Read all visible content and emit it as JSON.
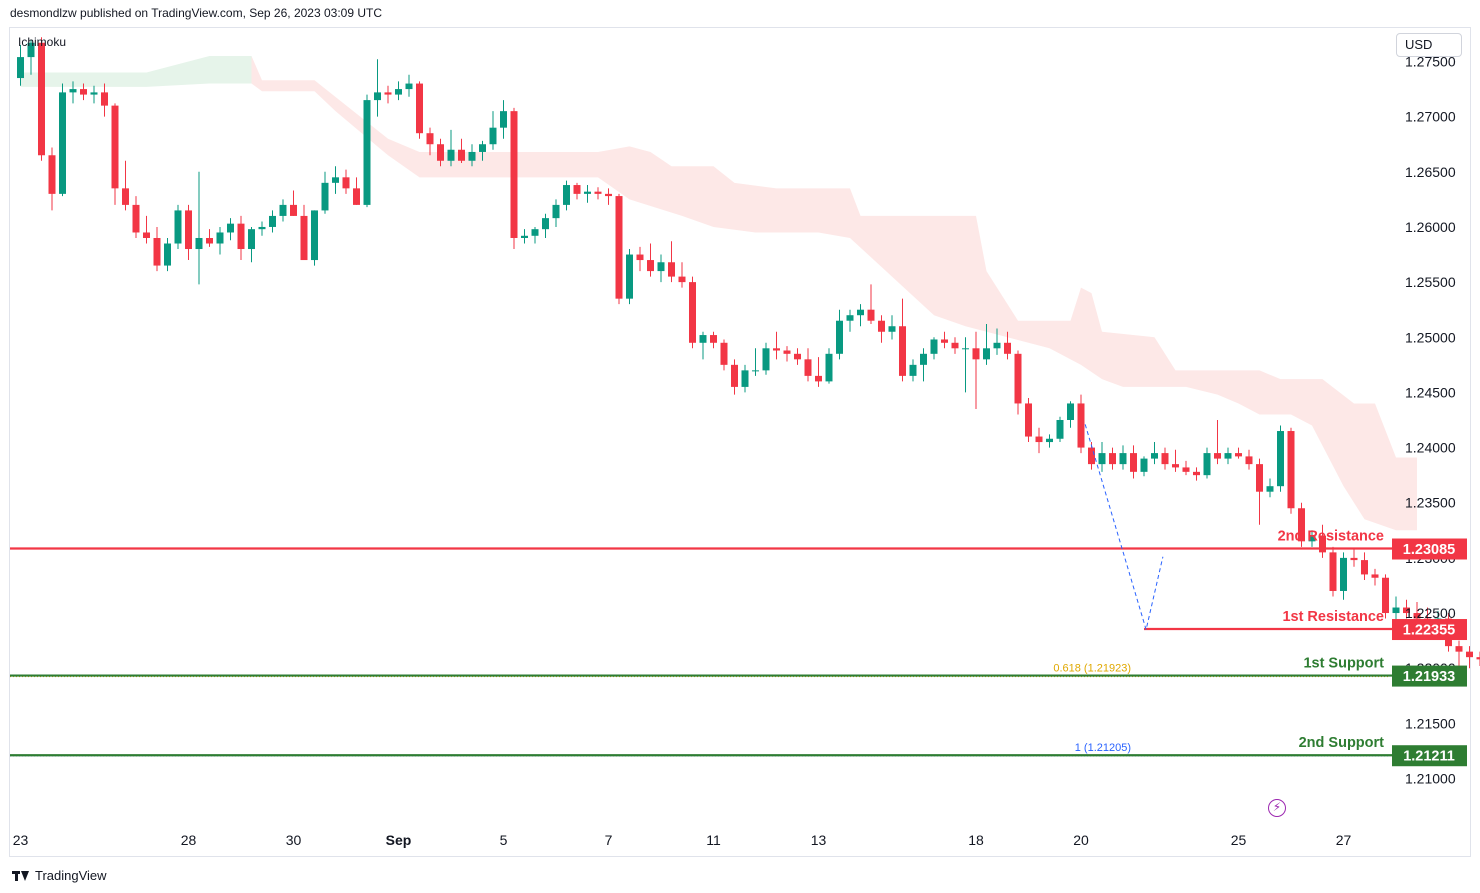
{
  "header": {
    "text": "desmondlzw published on TradingView.com, Sep 26, 2023 03:09 UTC"
  },
  "indicator": {
    "label": "Ichimoku"
  },
  "currency": {
    "label": "USD"
  },
  "footer": {
    "brand": "TradingView"
  },
  "icons": {
    "logo": "tradingview-logo-icon",
    "flash": "lightning-icon"
  },
  "colors": {
    "up": "#089981",
    "down": "#f23645",
    "cloud_green": "#e6f4ea",
    "cloud_red": "#fde8e7",
    "resistance": "#f23645",
    "support": "#2e7d32",
    "fib_618": "#e0a800",
    "fib_1": "#2962ff"
  },
  "chart_data": {
    "type": "candlestick",
    "symbol_currency": "USD",
    "y_ticks": [
      "1.27500",
      "1.27000",
      "1.26500",
      "1.26000",
      "1.25500",
      "1.25000",
      "1.24500",
      "1.24000",
      "1.23500",
      "1.23000",
      "1.22500",
      "1.22000",
      "1.21500",
      "1.21000"
    ],
    "x_ticks": [
      {
        "label": "23",
        "bar": 0
      },
      {
        "label": "28",
        "bar": 16
      },
      {
        "label": "30",
        "bar": 26
      },
      {
        "label": "Sep",
        "bar": 36,
        "bold": true
      },
      {
        "label": "5",
        "bar": 46
      },
      {
        "label": "7",
        "bar": 56
      },
      {
        "label": "11",
        "bar": 66
      },
      {
        "label": "13",
        "bar": 76
      },
      {
        "label": "18",
        "bar": 91
      },
      {
        "label": "20",
        "bar": 101
      },
      {
        "label": "25",
        "bar": 116
      },
      {
        "label": "27",
        "bar": 126
      }
    ],
    "ylim": [
      1.2063,
      1.2771
    ],
    "levels": [
      {
        "name": "2nd Resistance",
        "price": "1.23085",
        "value": 1.23085,
        "color": "#f23645"
      },
      {
        "name": "1st Resistance",
        "price": "1.22355",
        "value": 1.22355,
        "color": "#f23645",
        "from_bar": 107
      },
      {
        "name": "1st Support",
        "price": "1.21933",
        "value": 1.21933,
        "color": "#2e7d32"
      },
      {
        "name": "2nd Support",
        "price": "1.21211",
        "value": 1.21211,
        "color": "#2e7d32"
      }
    ],
    "fib_levels": [
      {
        "label": "0.618 (1.21923)",
        "value": 1.21923,
        "color": "#e0a800"
      },
      {
        "label": "1 (1.21205)",
        "value": 1.21205,
        "color": "#2962ff"
      }
    ],
    "candles": [
      [
        1.2735,
        1.2765,
        1.2728,
        1.2754
      ],
      [
        1.2754,
        1.277,
        1.2738,
        1.2767
      ],
      [
        1.2767,
        1.2772,
        1.266,
        1.2665
      ],
      [
        1.2665,
        1.2672,
        1.2615,
        1.263
      ],
      [
        1.263,
        1.273,
        1.2628,
        1.2722
      ],
      [
        1.2722,
        1.2732,
        1.2712,
        1.2725
      ],
      [
        1.2725,
        1.273,
        1.2715,
        1.272
      ],
      [
        1.272,
        1.2728,
        1.2712,
        1.2722
      ],
      [
        1.2722,
        1.273,
        1.27,
        1.271
      ],
      [
        1.271,
        1.2712,
        1.262,
        1.2635
      ],
      [
        1.2635,
        1.266,
        1.2615,
        1.262
      ],
      [
        1.262,
        1.2628,
        1.259,
        1.2595
      ],
      [
        1.2595,
        1.261,
        1.2585,
        1.259
      ],
      [
        1.259,
        1.26,
        1.256,
        1.2565
      ],
      [
        1.2565,
        1.259,
        1.256,
        1.2585
      ],
      [
        1.2585,
        1.262,
        1.258,
        1.2615
      ],
      [
        1.2615,
        1.262,
        1.257,
        1.258
      ],
      [
        1.258,
        1.265,
        1.2548,
        1.259
      ],
      [
        1.259,
        1.2598,
        1.2582,
        1.2585
      ],
      [
        1.2585,
        1.26,
        1.2575,
        1.2595
      ],
      [
        1.2595,
        1.2608,
        1.2588,
        1.2603
      ],
      [
        1.2603,
        1.261,
        1.257,
        1.258
      ],
      [
        1.258,
        1.26,
        1.2568,
        1.2598
      ],
      [
        1.2598,
        1.2605,
        1.2592,
        1.26
      ],
      [
        1.26,
        1.2615,
        1.2595,
        1.261
      ],
      [
        1.261,
        1.2625,
        1.2605,
        1.262
      ],
      [
        1.262,
        1.2633,
        1.261,
        1.261
      ],
      [
        1.261,
        1.262,
        1.257,
        1.257
      ],
      [
        1.257,
        1.2615,
        1.2565,
        1.2615
      ],
      [
        1.2615,
        1.265,
        1.2612,
        1.264
      ],
      [
        1.264,
        1.2655,
        1.263,
        1.2645
      ],
      [
        1.2645,
        1.2652,
        1.263,
        1.2635
      ],
      [
        1.2635,
        1.2645,
        1.262,
        1.262
      ],
      [
        1.262,
        1.272,
        1.2618,
        1.2715
      ],
      [
        1.2715,
        1.2752,
        1.27,
        1.2722
      ],
      [
        1.2722,
        1.2728,
        1.2712,
        1.272
      ],
      [
        1.272,
        1.2732,
        1.2715,
        1.2725
      ],
      [
        1.2725,
        1.2738,
        1.2718,
        1.273
      ],
      [
        1.273,
        1.2732,
        1.268,
        1.2685
      ],
      [
        1.2685,
        1.269,
        1.2665,
        1.2675
      ],
      [
        1.2675,
        1.268,
        1.2655,
        1.266
      ],
      [
        1.266,
        1.2688,
        1.2655,
        1.267
      ],
      [
        1.267,
        1.268,
        1.2658,
        1.266
      ],
      [
        1.266,
        1.2675,
        1.2655,
        1.2668
      ],
      [
        1.2668,
        1.2678,
        1.266,
        1.2675
      ],
      [
        1.2675,
        1.2705,
        1.267,
        1.269
      ],
      [
        1.269,
        1.2715,
        1.268,
        1.2705
      ],
      [
        1.2705,
        1.2708,
        1.258,
        1.259
      ],
      [
        1.259,
        1.2598,
        1.2585,
        1.2592
      ],
      [
        1.2592,
        1.26,
        1.2585,
        1.2598
      ],
      [
        1.2598,
        1.2612,
        1.259,
        1.2608
      ],
      [
        1.2608,
        1.2625,
        1.26,
        1.262
      ],
      [
        1.262,
        1.2642,
        1.2615,
        1.2638
      ],
      [
        1.2638,
        1.264,
        1.2625,
        1.263
      ],
      [
        1.263,
        1.2638,
        1.2622,
        1.2632
      ],
      [
        1.2632,
        1.2636,
        1.2625,
        1.263
      ],
      [
        1.263,
        1.2635,
        1.262,
        1.2628
      ],
      [
        1.2628,
        1.263,
        1.253,
        1.2535
      ],
      [
        1.2535,
        1.258,
        1.253,
        1.2575
      ],
      [
        1.2575,
        1.2582,
        1.256,
        1.257
      ],
      [
        1.257,
        1.2585,
        1.2555,
        1.256
      ],
      [
        1.256,
        1.2575,
        1.255,
        1.2568
      ],
      [
        1.2568,
        1.2587,
        1.255,
        1.2555
      ],
      [
        1.2555,
        1.2568,
        1.2545,
        1.255
      ],
      [
        1.255,
        1.2555,
        1.249,
        1.2495
      ],
      [
        1.2495,
        1.2505,
        1.248,
        1.2502
      ],
      [
        1.2502,
        1.2505,
        1.249,
        1.2495
      ],
      [
        1.2495,
        1.2498,
        1.247,
        1.2475
      ],
      [
        1.2475,
        1.248,
        1.2448,
        1.2455
      ],
      [
        1.2455,
        1.2475,
        1.245,
        1.247
      ],
      [
        1.247,
        1.249,
        1.2465,
        1.247
      ],
      [
        1.247,
        1.2495,
        1.2466,
        1.249
      ],
      [
        1.249,
        1.2505,
        1.248,
        1.2488
      ],
      [
        1.2488,
        1.2492,
        1.2478,
        1.2485
      ],
      [
        1.2485,
        1.249,
        1.2475,
        1.248
      ],
      [
        1.248,
        1.249,
        1.246,
        1.2465
      ],
      [
        1.2465,
        1.2482,
        1.2455,
        1.246
      ],
      [
        1.246,
        1.249,
        1.2458,
        1.2485
      ],
      [
        1.2485,
        1.2525,
        1.248,
        1.2515
      ],
      [
        1.2515,
        1.2525,
        1.2505,
        1.252
      ],
      [
        1.252,
        1.253,
        1.251,
        1.2525
      ],
      [
        1.2525,
        1.2548,
        1.2512,
        1.2515
      ],
      [
        1.2515,
        1.252,
        1.2495,
        1.2505
      ],
      [
        1.2505,
        1.252,
        1.2498,
        1.251
      ],
      [
        1.251,
        1.2535,
        1.246,
        1.2465
      ],
      [
        1.2465,
        1.248,
        1.246,
        1.2475
      ],
      [
        1.2475,
        1.249,
        1.246,
        1.2485
      ],
      [
        1.2485,
        1.25,
        1.248,
        1.2498
      ],
      [
        1.2498,
        1.2505,
        1.249,
        1.2495
      ],
      [
        1.2495,
        1.25,
        1.2485,
        1.249
      ],
      [
        1.249,
        1.25,
        1.245,
        1.249
      ],
      [
        1.249,
        1.2505,
        1.2435,
        1.248
      ],
      [
        1.248,
        1.2512,
        1.2475,
        1.249
      ],
      [
        1.249,
        1.2508,
        1.2484,
        1.2495
      ],
      [
        1.2495,
        1.2505,
        1.248,
        1.2485
      ],
      [
        1.2485,
        1.2488,
        1.243,
        1.244
      ],
      [
        1.244,
        1.2445,
        1.2405,
        1.241
      ],
      [
        1.241,
        1.2418,
        1.2395,
        1.2405
      ],
      [
        1.2405,
        1.2412,
        1.24,
        1.2408
      ],
      [
        1.2408,
        1.2428,
        1.2405,
        1.2425
      ],
      [
        1.2425,
        1.2442,
        1.2418,
        1.244
      ],
      [
        1.244,
        1.2448,
        1.2395,
        1.24
      ],
      [
        1.24,
        1.2405,
        1.238,
        1.2385
      ],
      [
        1.2385,
        1.2405,
        1.2378,
        1.2395
      ],
      [
        1.2395,
        1.24,
        1.238,
        1.2385
      ],
      [
        1.2385,
        1.2402,
        1.238,
        1.2395
      ],
      [
        1.2395,
        1.2402,
        1.2372,
        1.2378
      ],
      [
        1.2378,
        1.2392,
        1.2374,
        1.239
      ],
      [
        1.239,
        1.2405,
        1.2385,
        1.2395
      ],
      [
        1.2395,
        1.24,
        1.238,
        1.2385
      ],
      [
        1.2385,
        1.2398,
        1.2378,
        1.2382
      ],
      [
        1.2382,
        1.2388,
        1.2375,
        1.2378
      ],
      [
        1.2378,
        1.2382,
        1.237,
        1.2375
      ],
      [
        1.2375,
        1.24,
        1.2372,
        1.2395
      ],
      [
        1.2395,
        1.2425,
        1.2385,
        1.239
      ],
      [
        1.239,
        1.24,
        1.2385,
        1.2395
      ],
      [
        1.2395,
        1.24,
        1.239,
        1.2392
      ],
      [
        1.2392,
        1.2398,
        1.238,
        1.2385
      ],
      [
        1.2385,
        1.239,
        1.233,
        1.236
      ],
      [
        1.236,
        1.2372,
        1.2355,
        1.2365
      ],
      [
        1.2365,
        1.242,
        1.236,
        1.2415
      ],
      [
        1.2415,
        1.2418,
        1.234,
        1.2345
      ],
      [
        1.2345,
        1.235,
        1.231,
        1.2315
      ],
      [
        1.2315,
        1.2325,
        1.231,
        1.232
      ],
      [
        1.232,
        1.233,
        1.23,
        1.2305
      ],
      [
        1.2305,
        1.231,
        1.2265,
        1.227
      ],
      [
        1.227,
        1.2305,
        1.2262,
        1.23
      ],
      [
        1.23,
        1.2308,
        1.2292,
        1.2298
      ],
      [
        1.2298,
        1.2305,
        1.228,
        1.2285
      ],
      [
        1.2285,
        1.229,
        1.2275,
        1.2282
      ],
      [
        1.2282,
        1.2285,
        1.2245,
        1.225
      ],
      [
        1.225,
        1.2265,
        1.2235,
        1.2255
      ],
      [
        1.2255,
        1.2262,
        1.2245,
        1.225
      ],
      [
        1.225,
        1.226,
        1.2235,
        1.2245
      ],
      [
        1.2245,
        1.2255,
        1.2238,
        1.224
      ],
      [
        1.224,
        1.2252,
        1.2235,
        1.2245
      ],
      [
        1.2245,
        1.225,
        1.2215,
        1.222
      ],
      [
        1.222,
        1.2225,
        1.2195,
        1.2215
      ],
      [
        1.2215,
        1.222,
        1.22,
        1.221
      ],
      [
        1.221,
        1.2215,
        1.2202,
        1.2208
      ],
      [
        1.2208,
        1.2212,
        1.2193,
        1.2198
      ]
    ],
    "kumo_upper": [
      [
        0,
        1.274
      ],
      [
        12,
        1.274
      ],
      [
        18,
        1.2755
      ],
      [
        22,
        1.2755
      ],
      [
        23,
        1.2733
      ],
      [
        28,
        1.2733
      ],
      [
        35,
        1.268
      ],
      [
        38,
        1.2668
      ],
      [
        55,
        1.2668
      ],
      [
        58,
        1.2673
      ],
      [
        60,
        1.2668
      ],
      [
        62,
        1.2655
      ],
      [
        66,
        1.2655
      ],
      [
        68,
        1.264
      ],
      [
        72,
        1.2635
      ],
      [
        79,
        1.2635
      ],
      [
        80,
        1.261
      ],
      [
        91,
        1.261
      ],
      [
        92,
        1.256
      ],
      [
        95,
        1.2515
      ],
      [
        100,
        1.2515
      ],
      [
        101,
        1.2545
      ],
      [
        102,
        1.254
      ],
      [
        103,
        1.2505
      ],
      [
        108,
        1.25
      ],
      [
        110,
        1.247
      ],
      [
        118,
        1.247
      ],
      [
        120,
        1.2462
      ],
      [
        124,
        1.2462
      ],
      [
        127,
        1.244
      ],
      [
        129,
        1.244
      ],
      [
        131,
        1.2391
      ],
      [
        133,
        1.2391
      ]
    ],
    "kumo_lower": [
      [
        0,
        1.2727
      ],
      [
        12,
        1.2727
      ],
      [
        18,
        1.273
      ],
      [
        22,
        1.273
      ],
      [
        23,
        1.2723
      ],
      [
        28,
        1.2723
      ],
      [
        30,
        1.2705
      ],
      [
        35,
        1.2665
      ],
      [
        38,
        1.2645
      ],
      [
        55,
        1.2645
      ],
      [
        58,
        1.2625
      ],
      [
        63,
        1.261
      ],
      [
        66,
        1.26
      ],
      [
        70,
        1.2595
      ],
      [
        76,
        1.2595
      ],
      [
        79,
        1.259
      ],
      [
        83,
        1.2555
      ],
      [
        87,
        1.252
      ],
      [
        90,
        1.251
      ],
      [
        92,
        1.2505
      ],
      [
        98,
        1.249
      ],
      [
        101,
        1.2475
      ],
      [
        103,
        1.2462
      ],
      [
        105,
        1.2455
      ],
      [
        111,
        1.2455
      ],
      [
        114,
        1.2448
      ],
      [
        116,
        1.244
      ],
      [
        118,
        1.243
      ],
      [
        121,
        1.243
      ],
      [
        123,
        1.242
      ],
      [
        126,
        1.2365
      ],
      [
        128,
        1.2335
      ],
      [
        131,
        1.2325
      ],
      [
        133,
        1.2325
      ]
    ],
    "zigzag": [
      [
        101.4,
        1.2421
      ],
      [
        107.2,
        1.2235
      ],
      [
        108.8,
        1.2301
      ]
    ]
  }
}
